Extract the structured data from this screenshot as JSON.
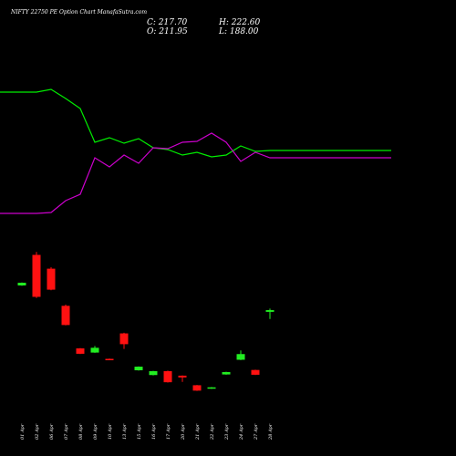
{
  "header": {
    "title": "NIFTY 22750  PE Option  Chart ManafaSutra.com",
    "close": "C: 217.70",
    "high": "H: 222.60",
    "open": "O: 211.95",
    "low": "L: 188.00"
  },
  "chart_data": {
    "type": "candlestick",
    "title": "NIFTY 22750  PE Option  Chart ManafaSutra.com",
    "colors": {
      "up": "#22ee22",
      "down": "#ff1111",
      "line_green": "#00ee00",
      "line_magenta": "#cc00cc",
      "background": "#000000"
    },
    "categories": [
      "01 Apr",
      "02 Apr",
      "06 Apr",
      "07 Apr",
      "08 Apr",
      "09 Apr",
      "10 Apr",
      "13 Apr",
      "15 Apr",
      "16 Apr",
      "17 Apr",
      "20 Apr",
      "21 Apr",
      "22 Apr",
      "23 Apr",
      "24 Apr",
      "27 Apr",
      "28 Apr"
    ],
    "candles": [
      {
        "open": 300,
        "close": 309,
        "high": 310,
        "low": 299
      },
      {
        "open": 402,
        "close": 262,
        "high": 412,
        "low": 258
      },
      {
        "open": 356,
        "close": 286,
        "high": 361,
        "low": 284
      },
      {
        "open": 232,
        "close": 168,
        "high": 236,
        "low": 167
      },
      {
        "open": 90,
        "close": 72,
        "high": 91,
        "low": 71
      },
      {
        "open": 76,
        "close": 92,
        "high": 98,
        "low": 75
      },
      {
        "open": 55,
        "close": 52,
        "high": 56,
        "low": 51
      },
      {
        "open": 140,
        "close": 104,
        "high": 142,
        "low": 88
      },
      {
        "open": 17,
        "close": 29,
        "high": 30,
        "low": 16
      },
      {
        "open": 1,
        "close": 14,
        "high": 15,
        "low": 0
      },
      {
        "open": 14,
        "close": -23,
        "high": 16,
        "low": -24
      },
      {
        "open": -1,
        "close": -7,
        "high": 0,
        "low": -22
      },
      {
        "open": -33,
        "close": -51,
        "high": -32,
        "low": -52
      },
      {
        "open": -44,
        "close": -40,
        "high": -39,
        "low": -45
      },
      {
        "open": 3,
        "close": 11,
        "high": 12,
        "low": 2
      },
      {
        "open": 52,
        "close": 71,
        "high": 83,
        "low": 51
      },
      {
        "open": 18,
        "close": 2,
        "high": 19,
        "low": 1
      },
      {
        "open": 211.95,
        "close": 217.7,
        "high": 222.6,
        "low": 188
      }
    ],
    "series": [
      {
        "color": "green",
        "values": [
          101,
          101,
          98,
          108,
          119,
          156,
          151,
          157,
          152,
          162,
          164,
          170,
          167,
          172,
          170,
          160,
          166,
          165
        ]
      },
      {
        "color": "magenta",
        "values": [
          234,
          234,
          233,
          220,
          213,
          173,
          183,
          170,
          179,
          162,
          163,
          156,
          155,
          146,
          156,
          177,
          167,
          173
        ]
      }
    ]
  }
}
